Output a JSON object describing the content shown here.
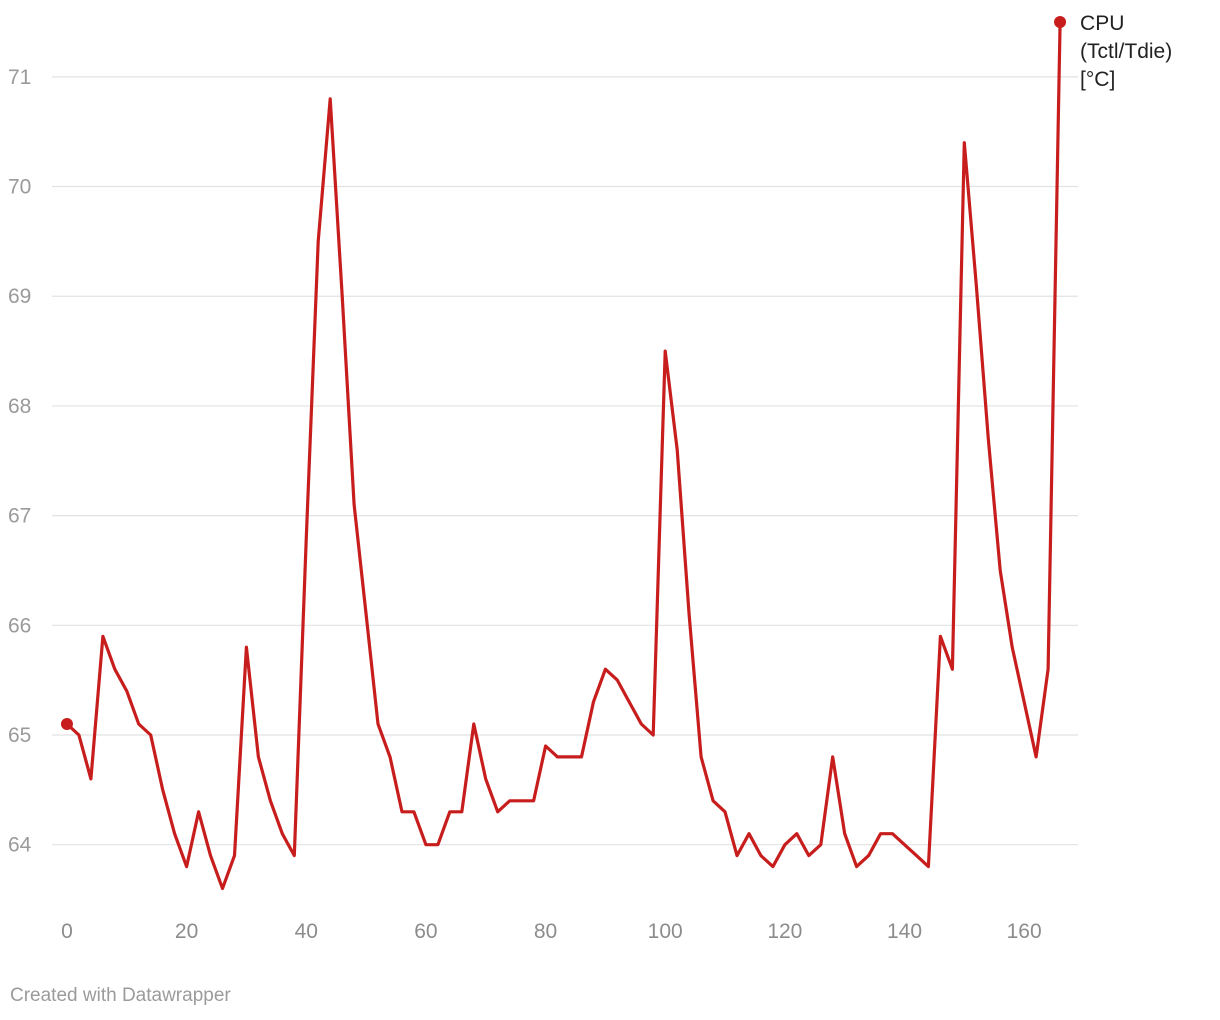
{
  "chart_data": {
    "type": "line",
    "series": [
      {
        "name": "CPU (Tctl/Tdie) [°C]",
        "name_lines": [
          "CPU",
          "(Tctl/Tdie)",
          "[°C]"
        ],
        "color": "#c71e1d",
        "x": [
          0,
          2,
          4,
          6,
          8,
          10,
          12,
          14,
          16,
          18,
          20,
          22,
          24,
          26,
          28,
          30,
          32,
          34,
          36,
          38,
          40,
          42,
          44,
          46,
          48,
          50,
          52,
          54,
          56,
          58,
          60,
          62,
          64,
          66,
          68,
          70,
          72,
          74,
          76,
          78,
          80,
          82,
          84,
          86,
          88,
          90,
          92,
          94,
          96,
          98,
          100,
          102,
          104,
          106,
          108,
          110,
          112,
          114,
          116,
          118,
          120,
          122,
          124,
          126,
          128,
          130,
          132,
          134,
          136,
          138,
          140,
          142,
          144,
          146,
          148,
          150,
          152,
          154,
          156,
          158,
          160,
          162,
          164,
          166
        ],
        "values": [
          65.1,
          65.0,
          64.6,
          65.9,
          65.6,
          65.4,
          65.1,
          65.0,
          64.5,
          64.1,
          63.8,
          64.3,
          63.9,
          63.6,
          63.9,
          65.8,
          64.8,
          64.4,
          64.1,
          63.9,
          66.8,
          69.5,
          70.8,
          69.0,
          67.1,
          66.1,
          65.1,
          64.8,
          64.3,
          64.3,
          64.0,
          64.0,
          64.3,
          64.3,
          65.1,
          64.6,
          64.3,
          64.4,
          64.4,
          64.4,
          64.9,
          64.8,
          64.8,
          64.8,
          65.3,
          65.6,
          65.5,
          65.3,
          65.1,
          65.0,
          68.5,
          67.6,
          66.1,
          64.8,
          64.4,
          64.3,
          63.9,
          64.1,
          63.9,
          63.8,
          64.0,
          64.1,
          63.9,
          64.0,
          64.8,
          64.1,
          63.8,
          63.9,
          64.1,
          64.1,
          64.0,
          63.9,
          63.8,
          65.9,
          65.6,
          70.4,
          69.1,
          67.7,
          66.5,
          65.8,
          65.3,
          64.8,
          65.6,
          71.5
        ]
      }
    ],
    "x_ticks": [
      "0",
      "20",
      "40",
      "60",
      "80",
      "100",
      "120",
      "140",
      "160"
    ],
    "y_ticks": [
      "64",
      "65",
      "66",
      "67",
      "68",
      "69",
      "70",
      "71"
    ],
    "xlim": [
      -2.5,
      169
    ],
    "ylim": [
      63.45,
      71.5
    ],
    "grid": true,
    "legend_placement": "right-end-label"
  },
  "footer": {
    "credit": "Created with Datawrapper"
  }
}
